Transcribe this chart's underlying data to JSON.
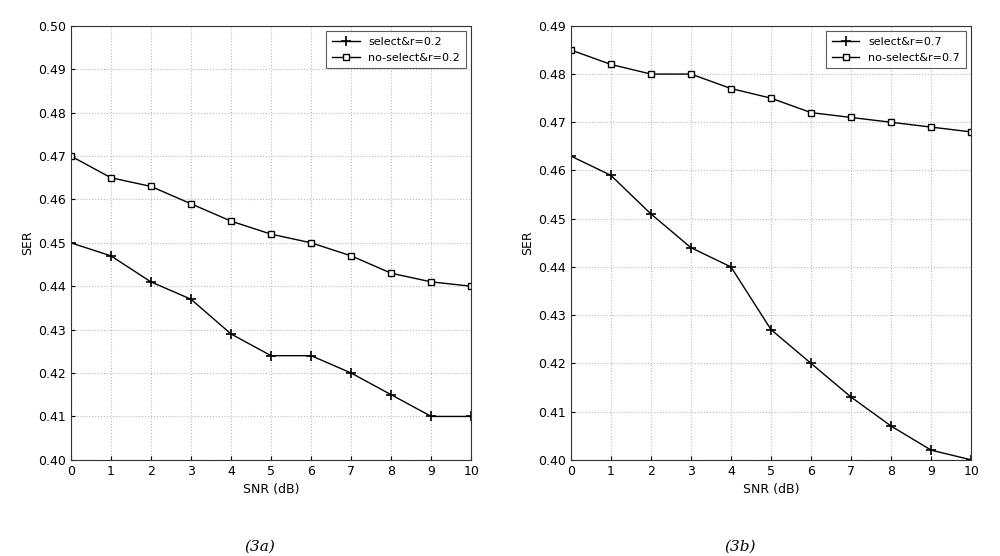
{
  "snr": [
    0,
    1,
    2,
    3,
    4,
    5,
    6,
    7,
    8,
    9,
    10
  ],
  "plot3a": {
    "select_r02": [
      0.45,
      0.447,
      0.441,
      0.437,
      0.429,
      0.424,
      0.424,
      0.42,
      0.415,
      0.41,
      0.41
    ],
    "noselect_r02": [
      0.47,
      0.465,
      0.463,
      0.459,
      0.455,
      0.452,
      0.45,
      0.447,
      0.443,
      0.441,
      0.44
    ],
    "ylabel": "SER",
    "xlabel": "SNR (dB)",
    "ylim": [
      0.4,
      0.5
    ],
    "yticks": [
      0.4,
      0.41,
      0.42,
      0.43,
      0.44,
      0.45,
      0.46,
      0.47,
      0.48,
      0.49,
      0.5
    ],
    "legend1": "select&r=0.2",
    "legend2": "no-select&r=0.2",
    "caption": "(3a)"
  },
  "plot3b": {
    "select_r07": [
      0.463,
      0.459,
      0.451,
      0.444,
      0.44,
      0.427,
      0.42,
      0.413,
      0.407,
      0.402,
      0.4
    ],
    "noselect_r07": [
      0.485,
      0.482,
      0.48,
      0.48,
      0.477,
      0.475,
      0.472,
      0.471,
      0.47,
      0.469,
      0.468
    ],
    "ylabel": "SER",
    "xlabel": "SNR (dB)",
    "ylim": [
      0.4,
      0.49
    ],
    "yticks": [
      0.4,
      0.41,
      0.42,
      0.43,
      0.44,
      0.45,
      0.46,
      0.47,
      0.48,
      0.49
    ],
    "legend1": "select&r=0.7",
    "legend2": "no-select&r=0.7",
    "caption": "(3b)"
  },
  "line_color": "#000000",
  "grid_color": "#bbbbbb",
  "bg_color": "#ffffff",
  "plot_bg": "#ffffff",
  "font_size": 9,
  "caption_font_size": 11
}
